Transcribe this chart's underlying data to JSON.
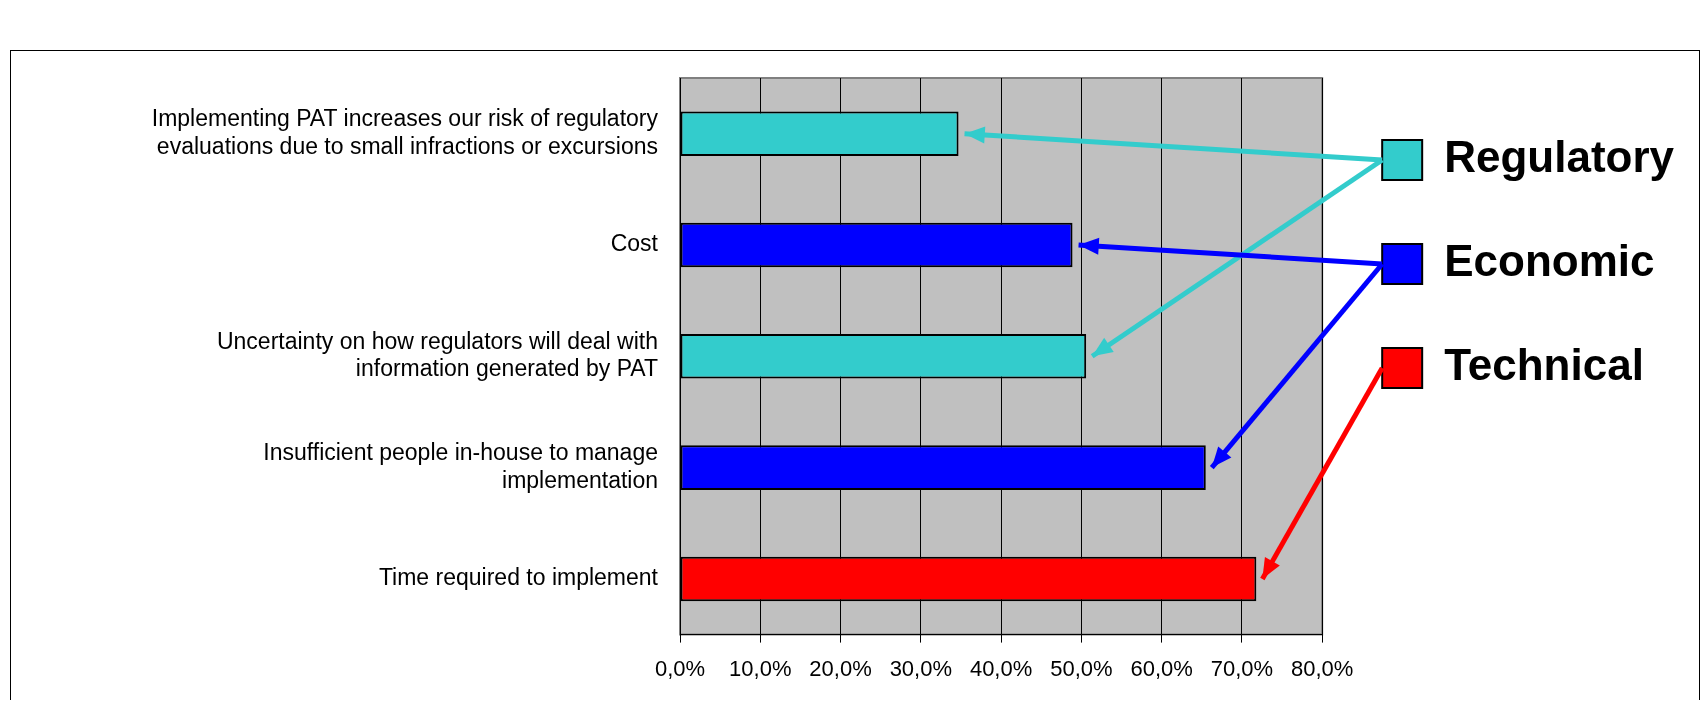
{
  "chart_data": {
    "type": "bar",
    "orientation": "horizontal",
    "categories": [
      "Implementing PAT increases our risk of regulatory evaluations due to small infractions or excursions",
      "Cost",
      "Uncertainty on how regulators will deal with information generated by PAT",
      "Insufficient people in-house to manage implementation",
      "Time required to implement"
    ],
    "series": [
      {
        "name": "Regulatory",
        "color": "#33cccc",
        "values": [
          34.7,
          null,
          50.6,
          null,
          null
        ]
      },
      {
        "name": "Economic",
        "color": "#0000ff",
        "values": [
          null,
          48.9,
          null,
          65.5,
          null
        ]
      },
      {
        "name": "Technical",
        "color": "#ff0000",
        "values": [
          null,
          null,
          null,
          null,
          71.8
        ]
      }
    ],
    "xlim": [
      0,
      80
    ],
    "xticks": [
      {
        "value": 0,
        "label": "0,0%"
      },
      {
        "value": 10,
        "label": "10,0%"
      },
      {
        "value": 20,
        "label": "20,0%"
      },
      {
        "value": 30,
        "label": "30,0%"
      },
      {
        "value": 40,
        "label": "40,0%"
      },
      {
        "value": 50,
        "label": "50,0%"
      },
      {
        "value": 60,
        "label": "60,0%"
      },
      {
        "value": 70,
        "label": "70,0%"
      },
      {
        "value": 80,
        "label": "80,0%"
      }
    ],
    "grid": "x",
    "legend": "right"
  }
}
